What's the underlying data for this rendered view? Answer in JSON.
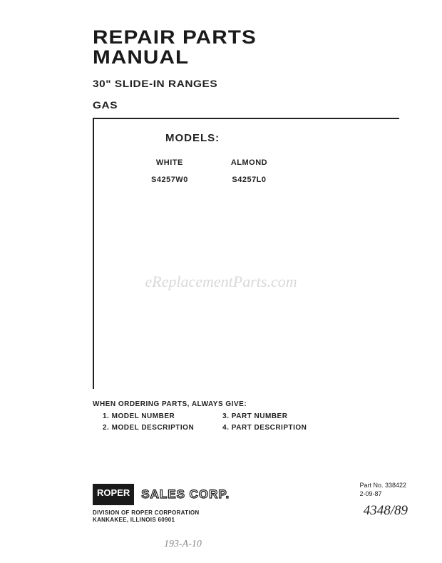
{
  "title_line1": "REPAIR PARTS",
  "title_line2": "MANUAL",
  "subtitle_line1": "30\" SLIDE-IN RANGES",
  "subtitle_line2": "GAS",
  "models_label": "MODELS:",
  "columns": [
    {
      "header": "WHITE",
      "value": "S4257W0"
    },
    {
      "header": "ALMOND",
      "value": "S4257L0"
    }
  ],
  "watermark": "eReplacementParts.com",
  "ordering": {
    "title": "WHEN ORDERING PARTS, ALWAYS GIVE:",
    "left": [
      "1. MODEL NUMBER",
      "2. MODEL DESCRIPTION"
    ],
    "right": [
      "3. PART NUMBER",
      "4. PART DESCRIPTION"
    ]
  },
  "logo": {
    "brand": "ROPER",
    "sales": "SALES CORP."
  },
  "division_line1": "DIVISION OF ROPER CORPORATION",
  "division_line2": "KANKAKEE, ILLINOIS 60901",
  "partno_label": "Part No. 338422",
  "partno_date": "2-09-87",
  "handwritten1": "193-A-10",
  "handwritten2": "4348/89"
}
